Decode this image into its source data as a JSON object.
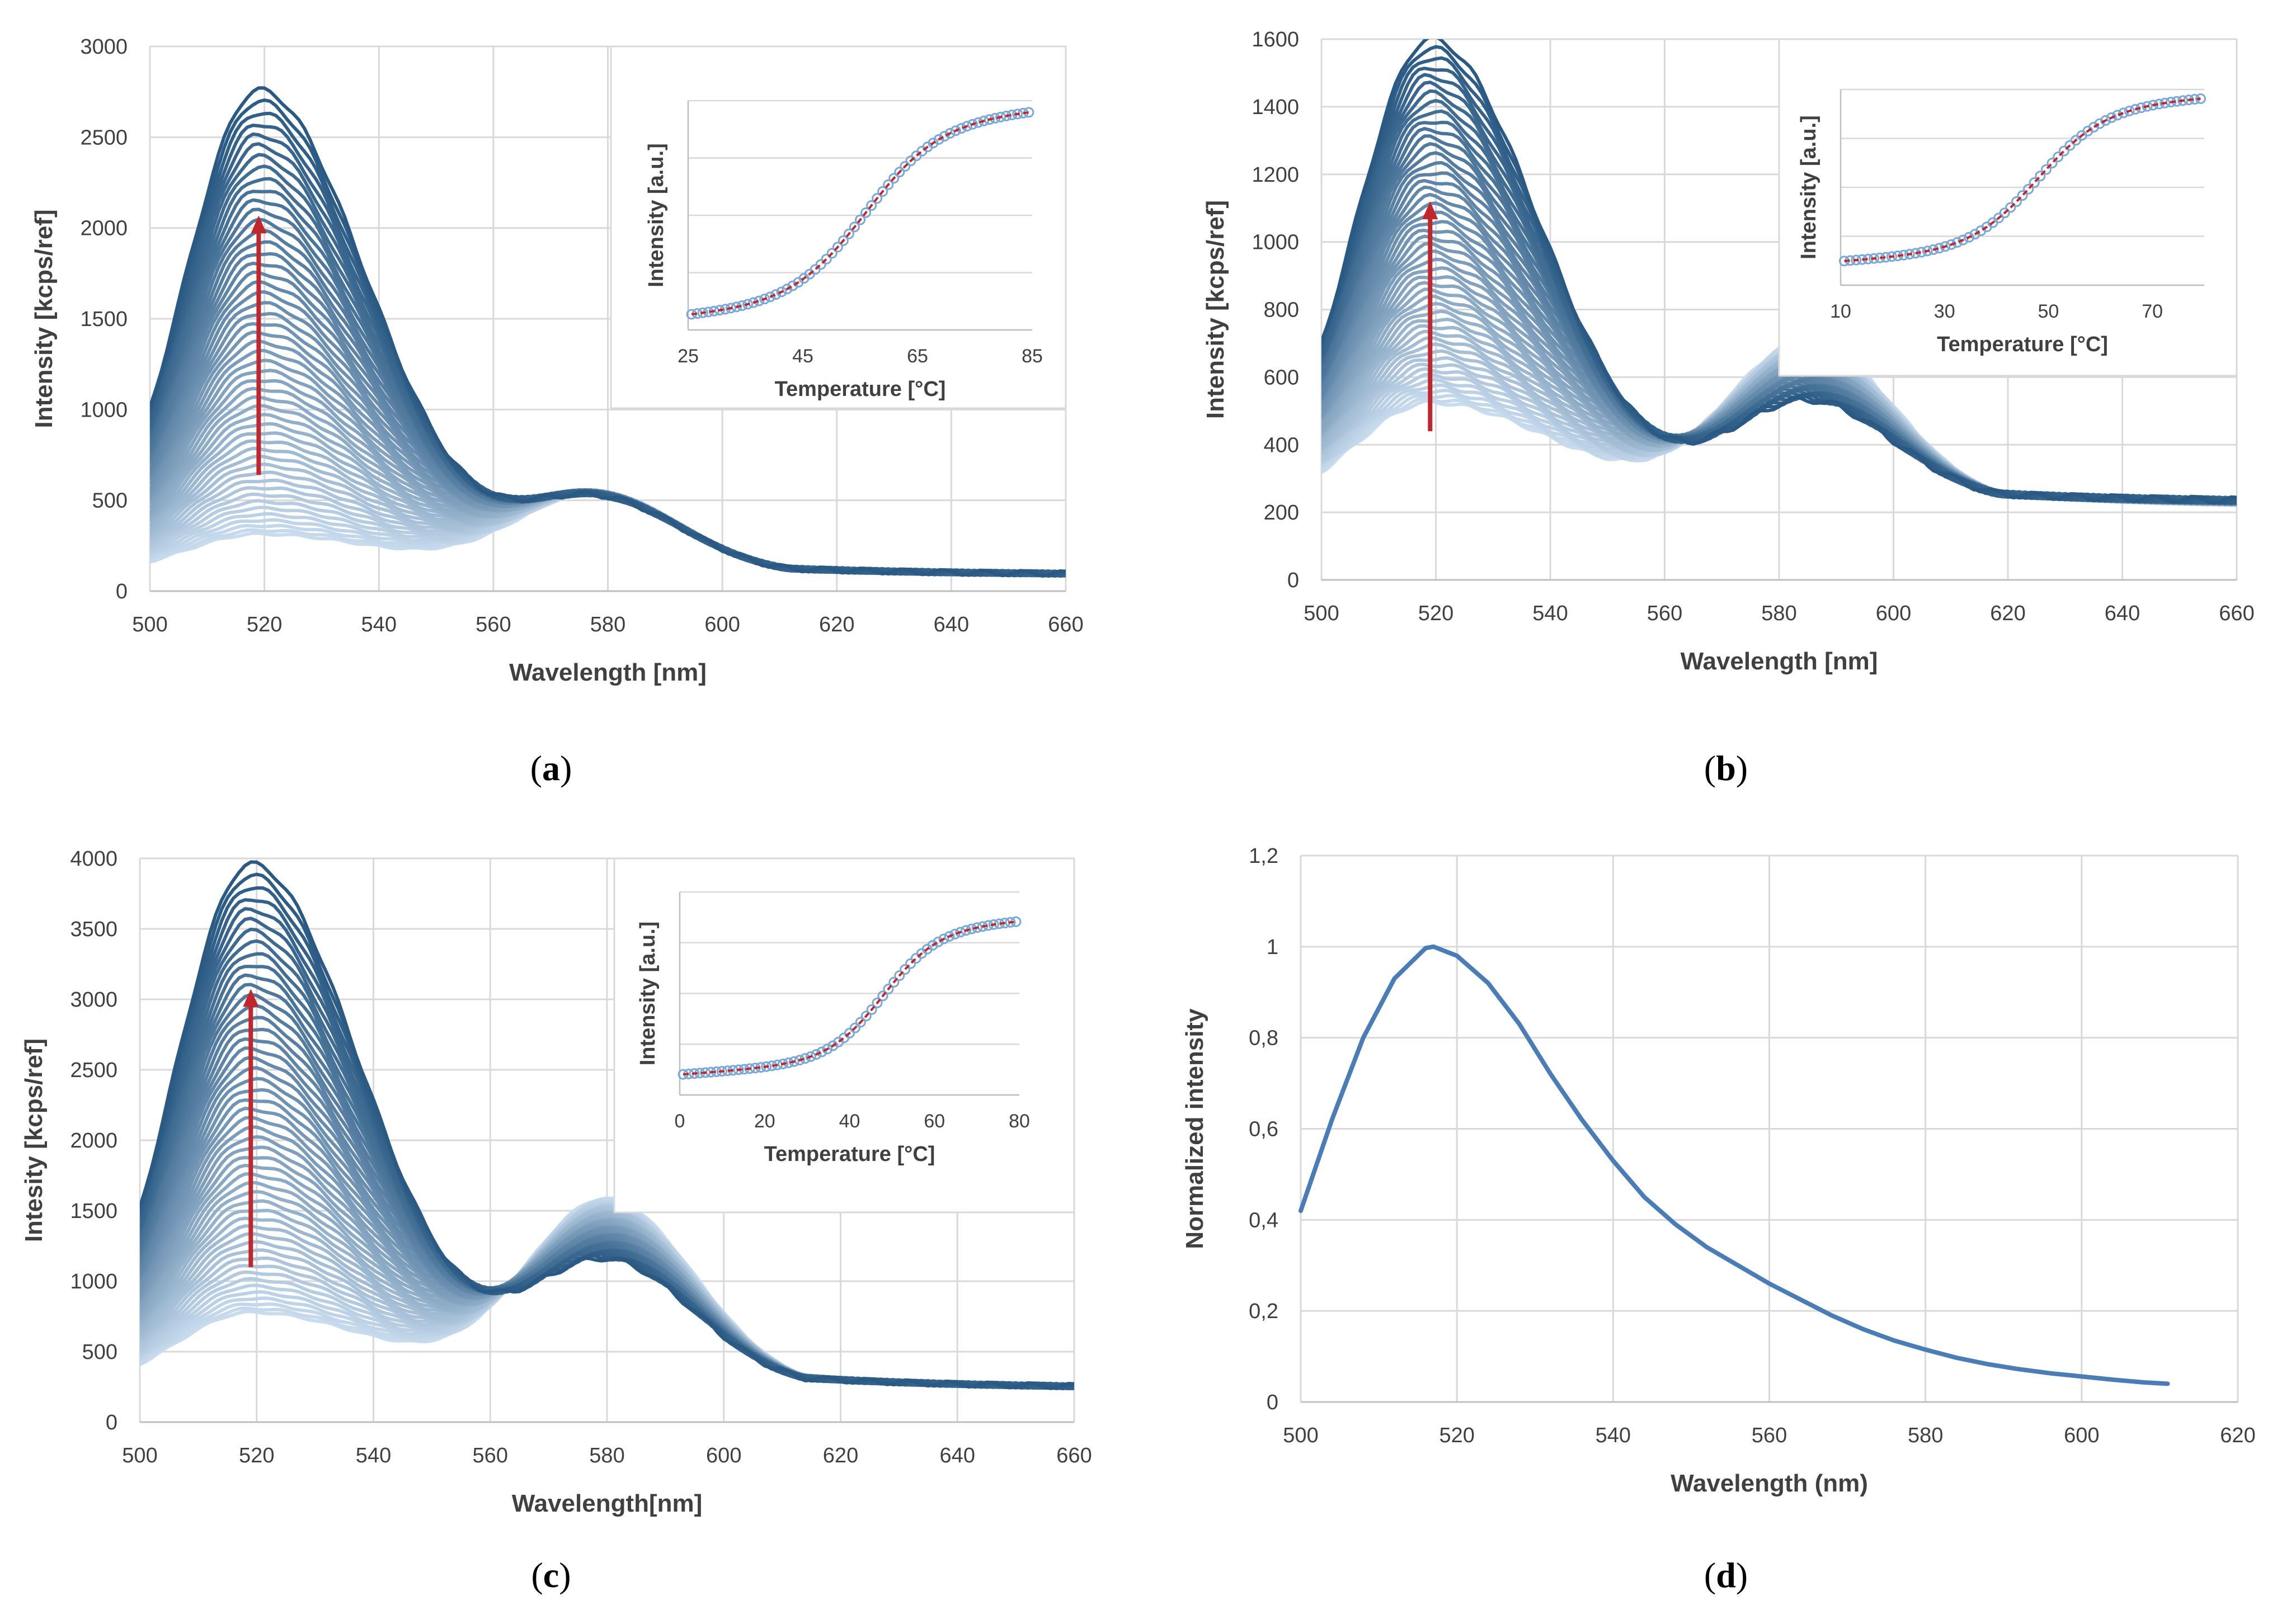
{
  "chart_data": [
    {
      "panel": "a",
      "type": "line",
      "panel_label": "a",
      "xlabel": "Wavelength [nm]",
      "ylabel": "Intensity  [kcps/ref]",
      "xlim": [
        500,
        660
      ],
      "ylim": [
        0,
        3000
      ],
      "xticks": [
        500,
        520,
        540,
        560,
        580,
        600,
        620,
        640,
        660
      ],
      "yticks": [
        0,
        500,
        1000,
        1500,
        2000,
        2500,
        3000
      ],
      "grid": true,
      "series_count": 50,
      "series_family": {
        "peak1_wavelength": 519,
        "peak1_range": [
          230,
          2670
        ],
        "peak2_wavelength": 578,
        "peak2_range": [
          450,
          420
        ],
        "tail_at_660": [
          85,
          90
        ]
      },
      "arrow": {
        "x": 519,
        "from": 640,
        "to": 2050,
        "color": "#c0272d"
      },
      "colors": {
        "light": "#c9dcee",
        "dark": "#2a5a84"
      },
      "inset": {
        "xlabel": "Temperature [°C]",
        "ylabel": "Intensity [a.u.]",
        "xlim": [
          25,
          85
        ],
        "xticks": [
          25,
          45,
          65,
          85
        ],
        "transition_midpoint": 56,
        "y_start": 0.06,
        "y_end": 0.96
      }
    },
    {
      "panel": "b",
      "type": "line",
      "panel_label": "b",
      "xlabel": "Wavelength [nm]",
      "ylabel": "Intensity [kcps/ref]",
      "xlim": [
        500,
        660
      ],
      "ylim": [
        0,
        1600
      ],
      "xticks": [
        500,
        520,
        540,
        560,
        580,
        600,
        620,
        640,
        660
      ],
      "yticks": [
        0,
        200,
        400,
        600,
        800,
        1000,
        1200,
        1400,
        1600
      ],
      "grid": true,
      "series_count": 50,
      "series_family": {
        "peak1_wavelength": 519,
        "peak1_range": [
          310,
          1370
        ],
        "peak2_wavelength": 585,
        "peak2_range": [
          490,
          300
        ],
        "tail_at_660": [
          215,
          230
        ]
      },
      "arrow": {
        "x": 519,
        "from": 440,
        "to": 1110,
        "color": "#c0272d"
      },
      "colors": {
        "light": "#c9dcee",
        "dark": "#2a5a84"
      },
      "inset": {
        "xlabel": "Temperature [°C]",
        "ylabel": "Intensity [a.u.]",
        "xlim": [
          10,
          80
        ],
        "xticks": [
          10,
          30,
          50,
          70
        ],
        "transition_midpoint": 48,
        "y_start": 0.12,
        "y_end": 0.96
      }
    },
    {
      "panel": "c",
      "type": "line",
      "panel_label": "c",
      "xlabel": "Wavelength[nm]",
      "ylabel": "Intesity [kcps/ref]",
      "xlim": [
        500,
        660
      ],
      "ylim": [
        0,
        4000
      ],
      "xticks": [
        500,
        520,
        540,
        560,
        580,
        600,
        620,
        640,
        660
      ],
      "yticks": [
        0,
        500,
        1000,
        1500,
        2000,
        2500,
        3000,
        3500,
        4000
      ],
      "grid": true,
      "series_count": 50,
      "series_family": {
        "peak1_wavelength": 519,
        "peak1_range": [
          560,
          3720
        ],
        "peak2_wavelength": 580,
        "peak2_range": [
          1350,
          900
        ],
        "tail_at_660": [
          220,
          240
        ]
      },
      "arrow": {
        "x": 519,
        "from": 1100,
        "to": 3050,
        "color": "#c0272d"
      },
      "colors": {
        "light": "#c9dcee",
        "dark": "#2a5a84"
      },
      "inset": {
        "xlabel": "Temperature [°C]",
        "ylabel": "Intensity [a.u.]",
        "xlim": [
          0,
          80
        ],
        "xticks": [
          0,
          20,
          40,
          60,
          80
        ],
        "transition_midpoint": 48,
        "y_start": 0.1,
        "y_end": 0.86
      }
    },
    {
      "panel": "d",
      "type": "line",
      "panel_label": "d",
      "xlabel": "Wavelength (nm)",
      "ylabel": "Normalized intensity",
      "xlim": [
        500,
        620
      ],
      "ylim": [
        0,
        1.2
      ],
      "xticks": [
        "500",
        "520",
        "540",
        "560",
        "580",
        "600",
        "620"
      ],
      "yticks": [
        "0",
        "0,2",
        "0,4",
        "0,6",
        "0,8",
        "1",
        "1,2"
      ],
      "grid": true,
      "color": "#4a7db5",
      "x": [
        500,
        504,
        508,
        512,
        516,
        517,
        520,
        524,
        528,
        532,
        536,
        540,
        544,
        548,
        552,
        556,
        560,
        564,
        568,
        572,
        576,
        580,
        584,
        588,
        592,
        596,
        600,
        604,
        608,
        611
      ],
      "values": [
        0.42,
        0.62,
        0.8,
        0.93,
        0.997,
        1.0,
        0.98,
        0.92,
        0.83,
        0.72,
        0.62,
        0.53,
        0.45,
        0.39,
        0.34,
        0.3,
        0.26,
        0.225,
        0.19,
        0.16,
        0.135,
        0.115,
        0.097,
        0.083,
        0.072,
        0.063,
        0.056,
        0.049,
        0.043,
        0.04
      ]
    }
  ]
}
